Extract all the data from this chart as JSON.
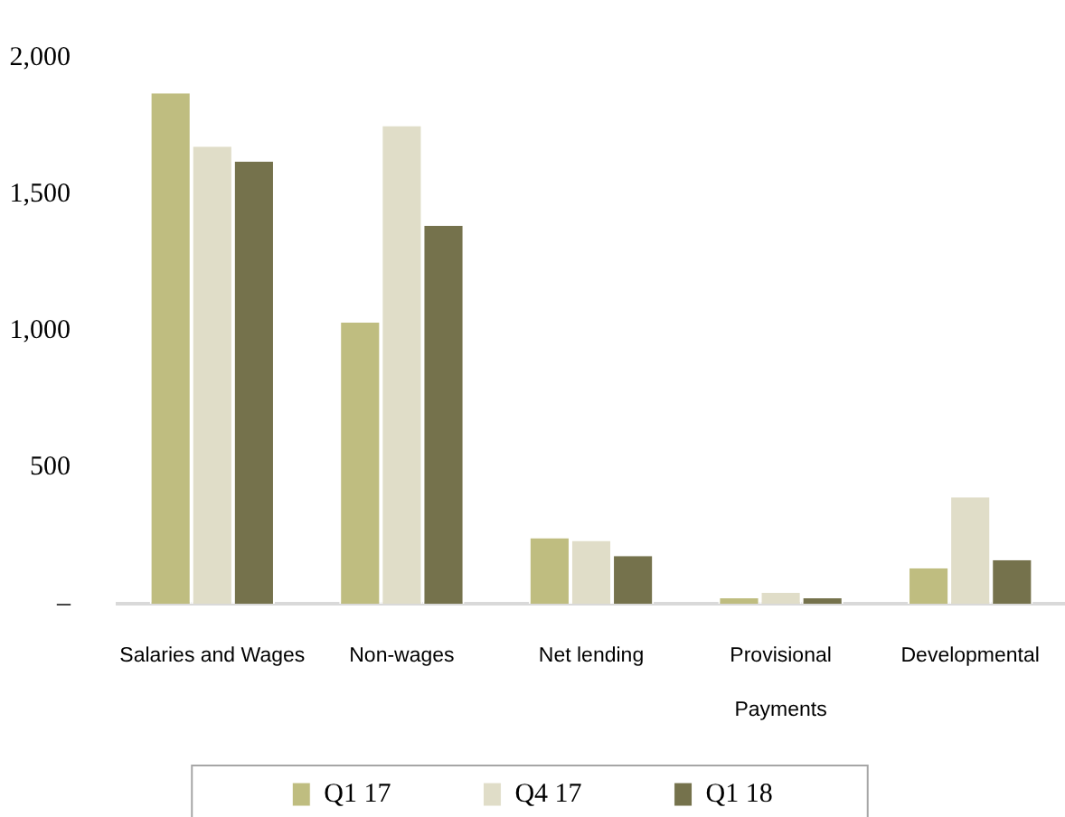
{
  "chart_data": {
    "type": "bar",
    "categories": [
      "Salaries and Wages",
      "Non-wages",
      "Net lending",
      "Provisional Payments",
      "Developmental"
    ],
    "series": [
      {
        "name": "Q1 17",
        "color": "#bfbd80",
        "values": [
          1870,
          1030,
          240,
          20,
          130
        ]
      },
      {
        "name": "Q4 17",
        "color": "#e0ddc8",
        "values": [
          1675,
          1750,
          230,
          40,
          390
        ]
      },
      {
        "name": "Q1 18",
        "color": "#75724c",
        "values": [
          1620,
          1385,
          175,
          20,
          160
        ]
      }
    ],
    "ylim": [
      0,
      2000
    ],
    "yticks": [
      {
        "value": 0,
        "label": "–"
      },
      500,
      {
        "value": 1000,
        "label": "1,000"
      },
      {
        "value": 1500,
        "label": "1,500"
      },
      {
        "value": 2000,
        "label": "2,000"
      }
    ],
    "grid": false,
    "legend": "bottom"
  }
}
